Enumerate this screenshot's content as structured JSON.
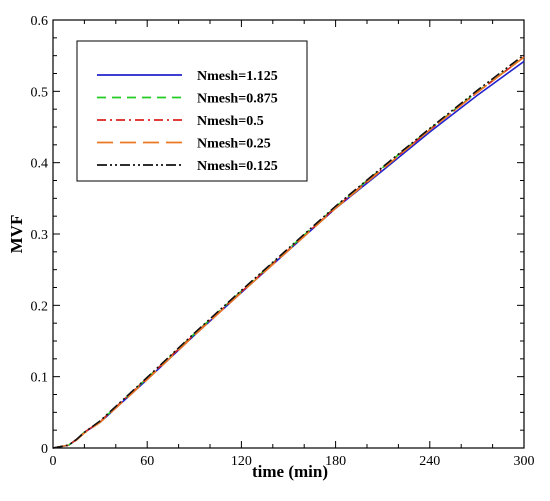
{
  "chart_data": {
    "type": "line",
    "title": "",
    "xlabel": "time (min)",
    "ylabel": "MVF",
    "xlim": [
      0,
      300
    ],
    "ylim": [
      0,
      0.6
    ],
    "xticks": [
      0,
      60,
      120,
      180,
      240,
      300
    ],
    "yticks": [
      0,
      0.1,
      0.2,
      0.3,
      0.4,
      0.5,
      0.6
    ],
    "xtick_labels": [
      "0",
      "60",
      "120",
      "180",
      "240",
      "300"
    ],
    "ytick_labels": [
      "0",
      "0.1",
      "0.2",
      "0.3",
      "0.4",
      "0.5",
      "0.6"
    ],
    "grid": false,
    "legend_position": "top-left",
    "series": [
      {
        "name": "Nmesh=1.125",
        "color": "#2222cc",
        "dash": "solid",
        "x": [
          0,
          10,
          15,
          20,
          30,
          60,
          90,
          120,
          150,
          180,
          210,
          240,
          270,
          300
        ],
        "y": [
          0,
          0.004,
          0.012,
          0.022,
          0.036,
          0.096,
          0.158,
          0.218,
          0.277,
          0.336,
          0.389,
          0.443,
          0.494,
          0.542
        ]
      },
      {
        "name": "Nmesh=0.875",
        "color": "#22cc22",
        "dash": "dashed",
        "x": [
          0,
          10,
          15,
          20,
          30,
          60,
          90,
          120,
          150,
          180,
          210,
          240,
          270,
          300
        ],
        "y": [
          0,
          0.004,
          0.012,
          0.022,
          0.037,
          0.098,
          0.16,
          0.22,
          0.279,
          0.338,
          0.393,
          0.447,
          0.499,
          0.548
        ]
      },
      {
        "name": "Nmesh=0.5",
        "color": "#dd2222",
        "dash": "dashdot",
        "x": [
          0,
          10,
          15,
          20,
          30,
          60,
          90,
          120,
          150,
          180,
          210,
          240,
          270,
          300
        ],
        "y": [
          0,
          0.004,
          0.012,
          0.022,
          0.037,
          0.098,
          0.159,
          0.219,
          0.278,
          0.337,
          0.392,
          0.446,
          0.498,
          0.548
        ]
      },
      {
        "name": "Nmesh=0.25",
        "color": "#ee7722",
        "dash": "longdash",
        "x": [
          0,
          10,
          15,
          20,
          30,
          60,
          90,
          120,
          150,
          180,
          210,
          240,
          270,
          300
        ],
        "y": [
          0,
          0.004,
          0.011,
          0.021,
          0.036,
          0.096,
          0.158,
          0.218,
          0.277,
          0.336,
          0.391,
          0.446,
          0.498,
          0.548
        ]
      },
      {
        "name": "Nmesh=0.125",
        "color": "#111111",
        "dash": "dashdotdot",
        "x": [
          0,
          10,
          15,
          20,
          30,
          60,
          90,
          120,
          150,
          180,
          210,
          240,
          270,
          300
        ],
        "y": [
          0,
          0.004,
          0.012,
          0.022,
          0.038,
          0.099,
          0.161,
          0.221,
          0.28,
          0.339,
          0.394,
          0.448,
          0.501,
          0.551
        ]
      }
    ]
  }
}
